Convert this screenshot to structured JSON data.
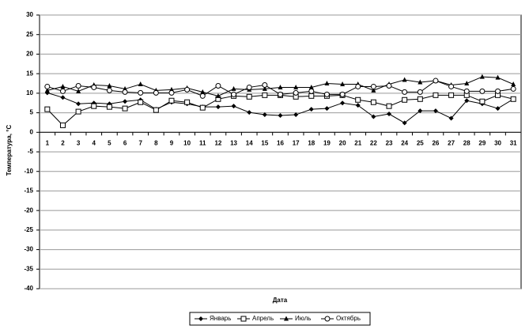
{
  "chart_data": {
    "type": "line",
    "x_label": "Дата",
    "y_label": "Температура, °С",
    "categories": [
      "1",
      "2",
      "3",
      "4",
      "5",
      "6",
      "7",
      "8",
      "9",
      "10",
      "11",
      "12",
      "13",
      "14",
      "15",
      "16",
      "17",
      "18",
      "19",
      "20",
      "21",
      "22",
      "23",
      "24",
      "25",
      "26",
      "27",
      "28",
      "29",
      "30",
      "31"
    ],
    "ylim": [
      -40,
      30
    ],
    "yticks": [
      30,
      25,
      20,
      15,
      10,
      5,
      0,
      -5,
      -10,
      -15,
      -20,
      -25,
      -30,
      -35,
      -40
    ],
    "grid": true,
    "legend": "bottom",
    "series": [
      {
        "name": "Январь",
        "color": "#000000",
        "marker": "diamond",
        "values": [
          10.1,
          8.9,
          7.3,
          7.5,
          7.3,
          7.9,
          8.3,
          5.9,
          7.7,
          7.3,
          6.5,
          6.5,
          6.7,
          5.1,
          4.5,
          4.3,
          4.5,
          5.9,
          6.1,
          7.5,
          6.9,
          4,
          4.7,
          2.4,
          5.5,
          5.5,
          3.6,
          8.1,
          7.3,
          6.1,
          8.5
        ]
      },
      {
        "name": "Апрель",
        "color": "#000000",
        "marker": "square",
        "values": [
          5.9,
          1.8,
          5.3,
          6.7,
          6.5,
          6.1,
          7.7,
          5.7,
          8.1,
          7.7,
          6.3,
          8.5,
          9.3,
          9.1,
          9.5,
          9.5,
          9.1,
          9.3,
          9.3,
          9.5,
          8.3,
          7.7,
          6.7,
          8.3,
          8.5,
          9.5,
          9.5,
          9.5,
          7.9,
          9.5,
          8.5
        ]
      },
      {
        "name": "Июль",
        "color": "#000000",
        "marker": "triangle",
        "values": [
          10.7,
          11.7,
          10.5,
          12.1,
          11.9,
          11.1,
          12.3,
          10.7,
          10.9,
          11.3,
          10.3,
          9.3,
          11.1,
          10.9,
          11.1,
          11.5,
          11.5,
          11.5,
          12.5,
          12.3,
          12.3,
          10.7,
          12.3,
          13.4,
          12.8,
          13.2,
          12.1,
          12.5,
          14.2,
          14,
          12.3
        ]
      },
      {
        "name": "Октябрь",
        "color": "#000000",
        "marker": "circle",
        "values": [
          11.7,
          10.5,
          11.9,
          11.5,
          10.7,
          10.3,
          10.1,
          10.1,
          10.1,
          10.9,
          9.3,
          11.9,
          9.7,
          11.5,
          12.1,
          9.7,
          10.1,
          10.5,
          9.7,
          9.7,
          11.7,
          11.7,
          11.9,
          10.3,
          10.3,
          13.2,
          11.7,
          10.5,
          10.5,
          10.5,
          11.1
        ]
      }
    ]
  }
}
